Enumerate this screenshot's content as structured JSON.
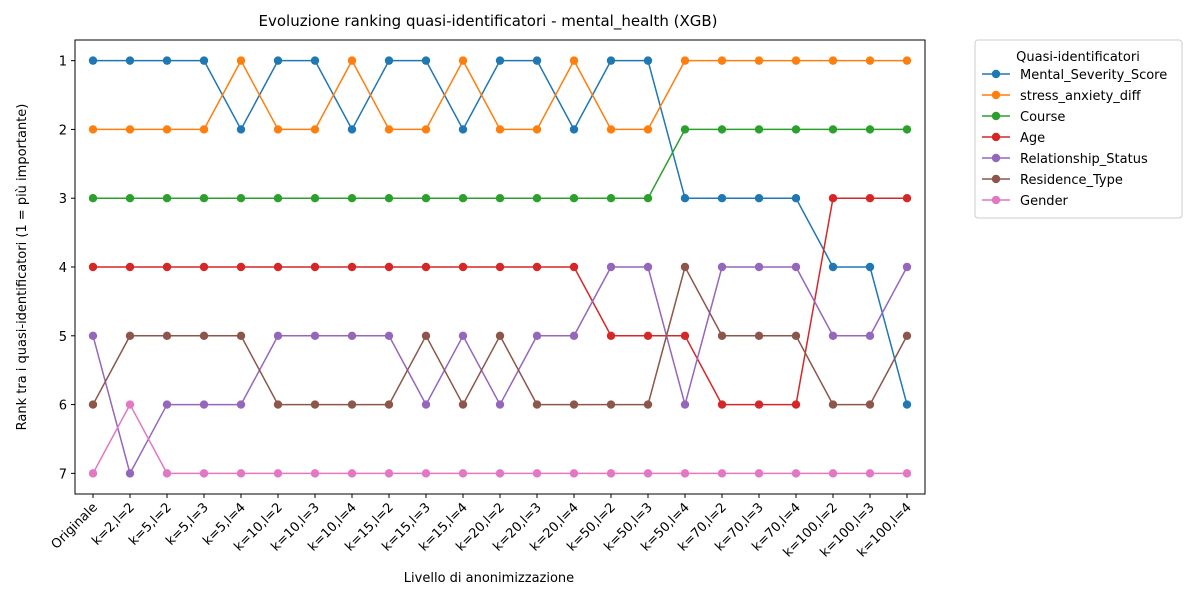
{
  "chart_data": {
    "type": "line",
    "title": "Evoluzione ranking quasi-identificatori - mental_health (XGB)",
    "xlabel": "Livello di anonimizzazione",
    "ylabel": "Rank tra i quasi-identificatori (1 = più importante)",
    "categories": [
      "Originale",
      "k=2,l=2",
      "k=5,l=2",
      "k=5,l=3",
      "k=5,l=4",
      "k=10,l=2",
      "k=10,l=3",
      "k=10,l=4",
      "k=15,l=2",
      "k=15,l=3",
      "k=15,l=4",
      "k=20,l=2",
      "k=20,l=3",
      "k=20,l=4",
      "k=50,l=2",
      "k=50,l=3",
      "k=50,l=4",
      "k=70,l=2",
      "k=70,l=3",
      "k=70,l=4",
      "k=100,l=2",
      "k=100,l=3",
      "k=100,l=4"
    ],
    "ylim": [
      7.3,
      0.7
    ],
    "yticks": [
      1,
      2,
      3,
      4,
      5,
      6,
      7
    ],
    "y_inverted": true,
    "grid": false,
    "legend_title": "Quasi-identificatori",
    "legend_position": "outside-top-right",
    "series": [
      {
        "name": "Mental_Severity_Score",
        "color": "#1f77b4",
        "values": [
          1,
          1,
          1,
          1,
          2,
          1,
          1,
          2,
          1,
          1,
          2,
          1,
          1,
          2,
          1,
          1,
          3,
          3,
          3,
          3,
          4,
          4,
          6
        ]
      },
      {
        "name": "stress_anxiety_diff",
        "color": "#ff7f0e",
        "values": [
          2,
          2,
          2,
          2,
          1,
          2,
          2,
          1,
          2,
          2,
          1,
          2,
          2,
          1,
          2,
          2,
          1,
          1,
          1,
          1,
          1,
          1,
          1
        ]
      },
      {
        "name": "Course",
        "color": "#2ca02c",
        "values": [
          3,
          3,
          3,
          3,
          3,
          3,
          3,
          3,
          3,
          3,
          3,
          3,
          3,
          3,
          3,
          3,
          2,
          2,
          2,
          2,
          2,
          2,
          2
        ]
      },
      {
        "name": "Age",
        "color": "#d62728",
        "values": [
          4,
          4,
          4,
          4,
          4,
          4,
          4,
          4,
          4,
          4,
          4,
          4,
          4,
          4,
          5,
          5,
          5,
          6,
          6,
          6,
          3,
          3,
          3
        ]
      },
      {
        "name": "Relationship_Status",
        "color": "#9467bd",
        "values": [
          5,
          7,
          6,
          6,
          6,
          5,
          5,
          5,
          5,
          6,
          5,
          6,
          5,
          5,
          4,
          4,
          6,
          4,
          4,
          4,
          5,
          5,
          4
        ]
      },
      {
        "name": "Residence_Type",
        "color": "#8c564b",
        "values": [
          6,
          5,
          5,
          5,
          5,
          6,
          6,
          6,
          6,
          5,
          6,
          5,
          6,
          6,
          6,
          6,
          4,
          5,
          5,
          5,
          6,
          6,
          5
        ]
      },
      {
        "name": "Gender",
        "color": "#e377c2",
        "values": [
          7,
          6,
          7,
          7,
          7,
          7,
          7,
          7,
          7,
          7,
          7,
          7,
          7,
          7,
          7,
          7,
          7,
          7,
          7,
          7,
          7,
          7,
          7
        ]
      }
    ]
  }
}
